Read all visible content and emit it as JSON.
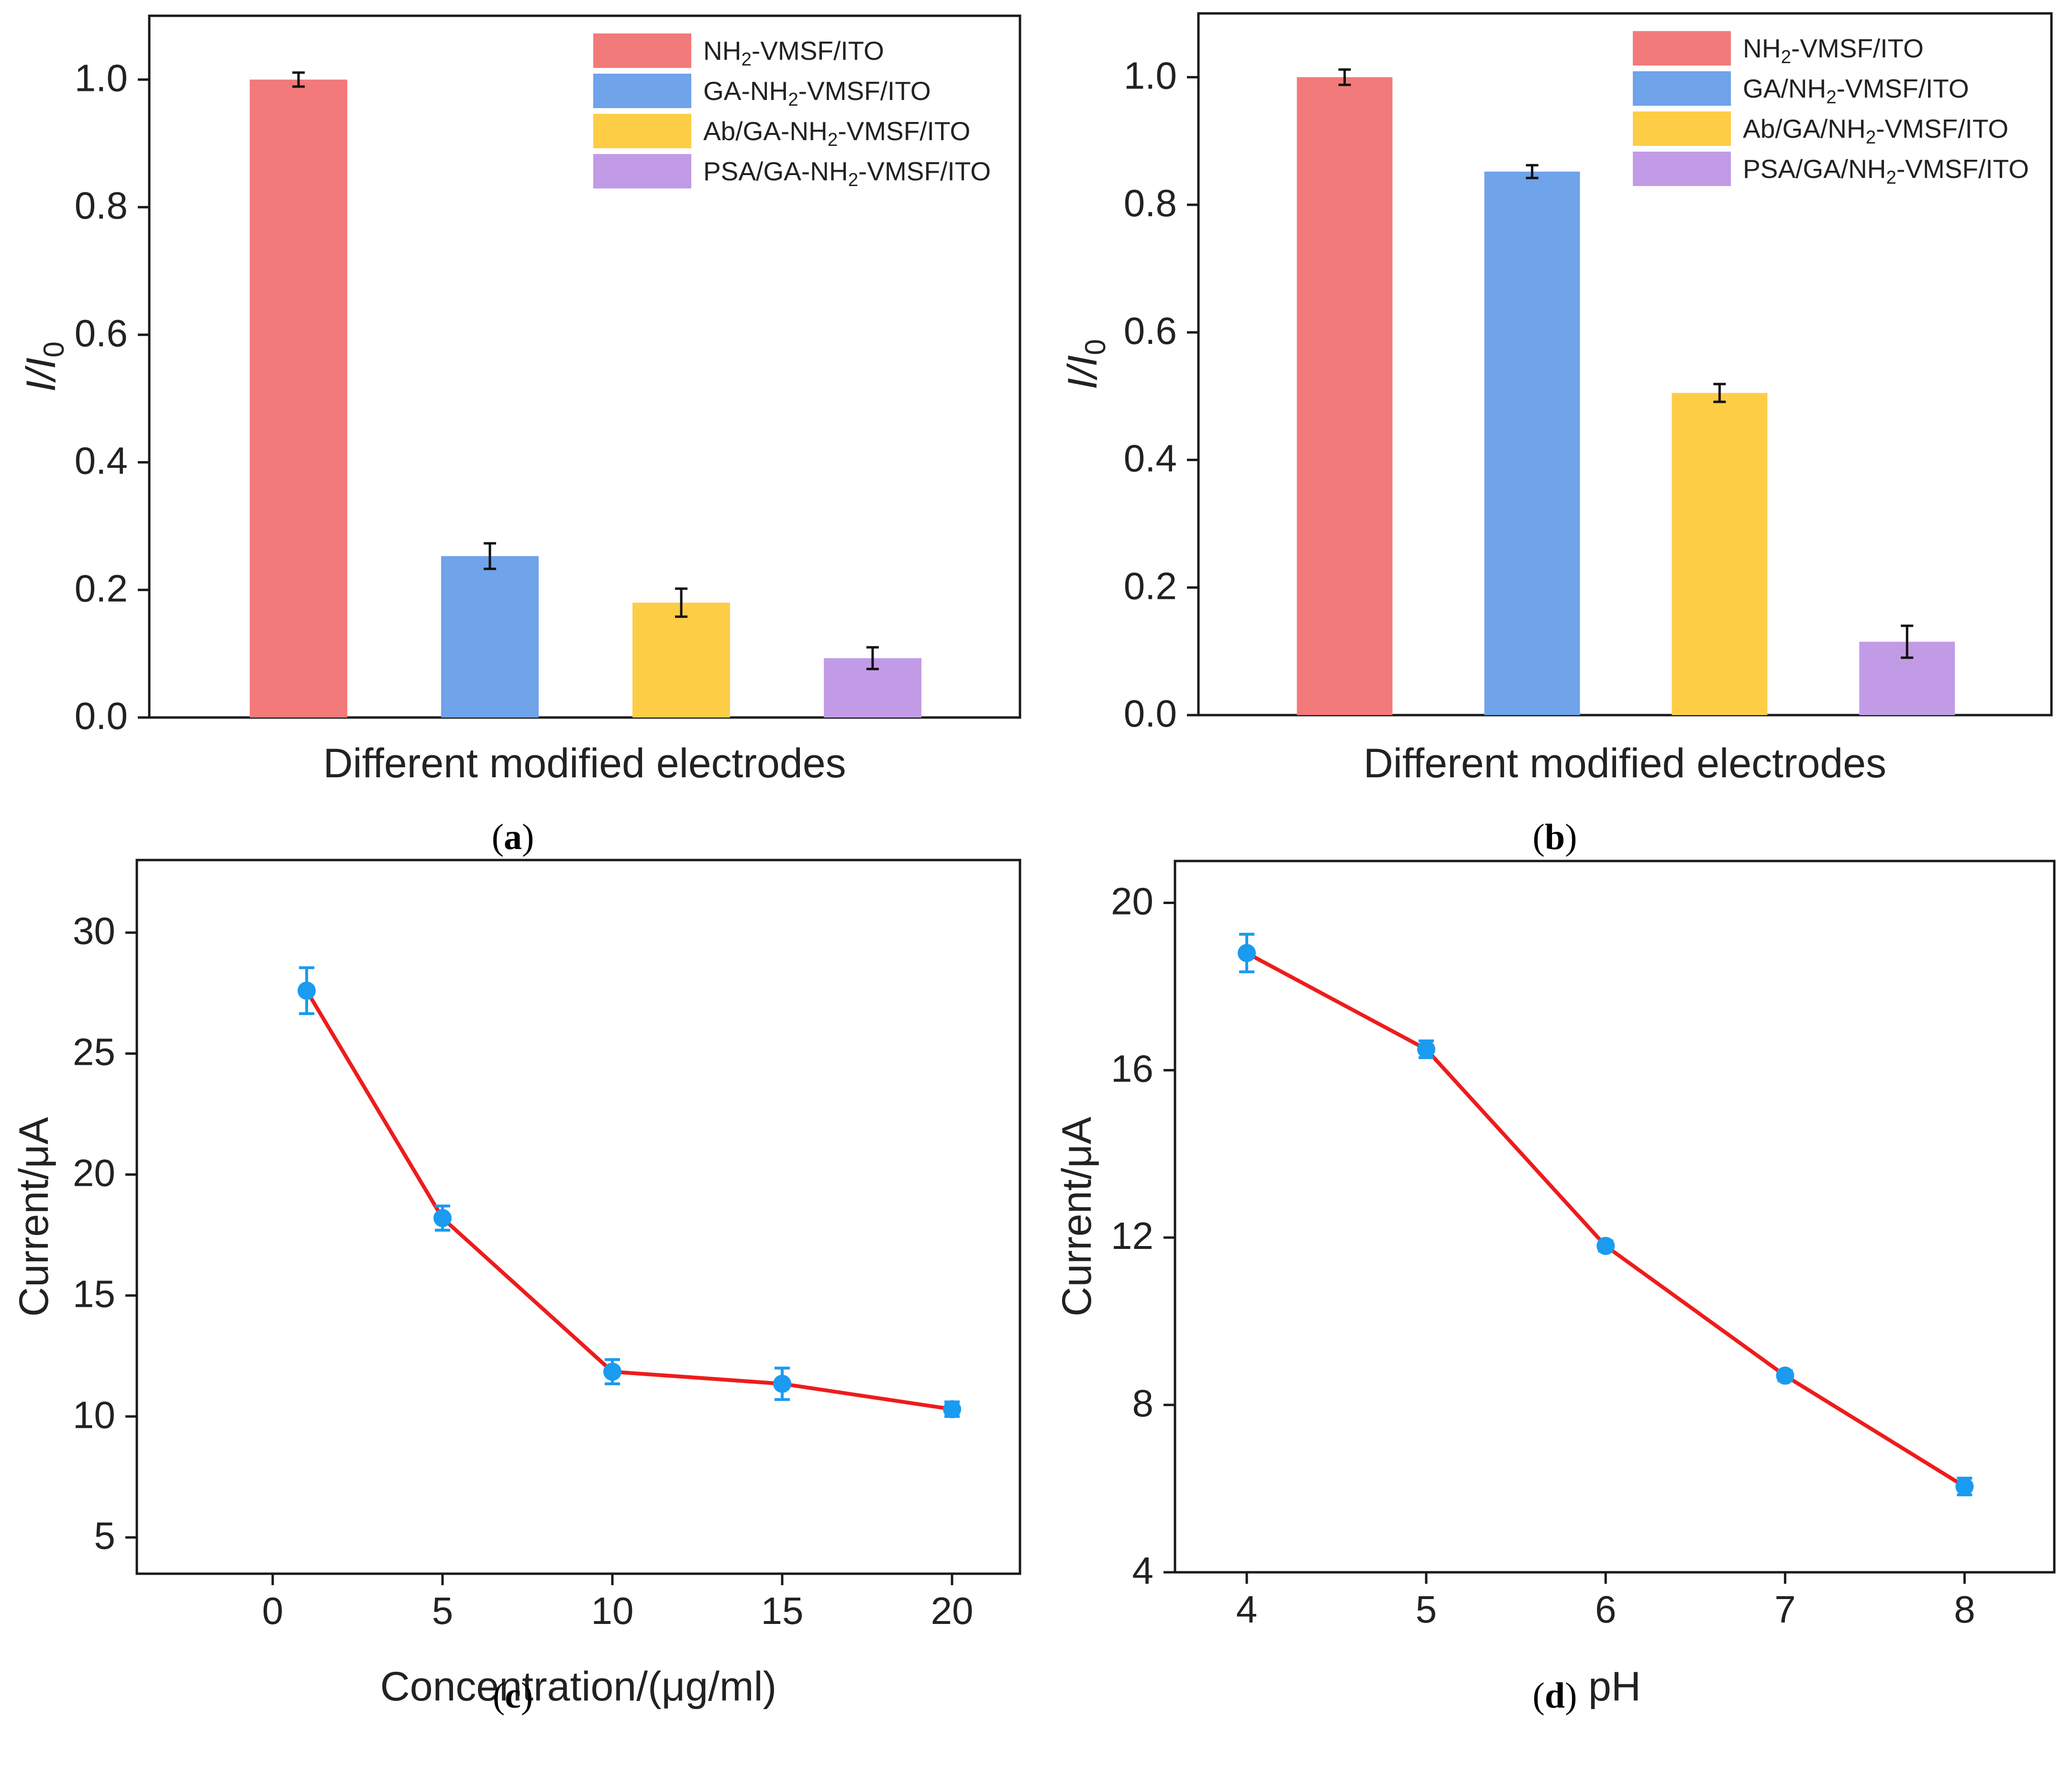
{
  "figure": {
    "panels": [
      "a",
      "b",
      "c",
      "d"
    ]
  },
  "chart_data": [
    {
      "panel": "a",
      "caption": "a",
      "type": "bar",
      "title": "",
      "xlabel": "Different modified electrodes",
      "ylabel_main": "I",
      "ylabel_sep": "/",
      "ylabel_den": "I",
      "ylabel_sub": "0",
      "ylim": [
        0,
        1.1
      ],
      "yticks": [
        "0.0",
        "0.2",
        "0.4",
        "0.6",
        "0.8",
        "1.0"
      ],
      "grid": false,
      "legend_position": "top-right",
      "categories": [
        "NH2-VMSF/ITO",
        "GA-NH2-VMSF/ITO",
        "Ab/GA-NH2-VMSF/ITO",
        "PSA/GA-NH2-VMSF/ITO"
      ],
      "values": [
        1.0,
        0.253,
        0.18,
        0.093
      ],
      "errors": [
        0.011,
        0.02,
        0.022,
        0.017
      ],
      "colors": [
        "#f27a7a",
        "#6fa3ea",
        "#fdcd46",
        "#c29be6"
      ],
      "legend": [
        {
          "pre": "NH",
          "sub": "2",
          "post": "-VMSF/ITO"
        },
        {
          "pre": "GA-NH",
          "sub": "2",
          "post": "-VMSF/ITO"
        },
        {
          "pre": "Ab/GA-NH",
          "sub": "2",
          "post": "-VMSF/ITO"
        },
        {
          "pre": "PSA/GA-NH",
          "sub": "2",
          "post": "-VMSF/ITO"
        }
      ]
    },
    {
      "panel": "b",
      "caption": "b",
      "type": "bar",
      "title": "",
      "xlabel": "Different modified electrodes",
      "ylabel_main": "I",
      "ylabel_sep": "/",
      "ylabel_den": "I",
      "ylabel_sub": "0",
      "ylim": [
        0,
        1.1
      ],
      "yticks": [
        "0.0",
        "0.2",
        "0.4",
        "0.6",
        "0.8",
        "1.0"
      ],
      "grid": false,
      "legend_position": "top-right",
      "categories": [
        "NH2-VMSF/ITO",
        "GA/NH2-VMSF/ITO",
        "Ab/GA/NH2-VMSF/ITO",
        "PSA/GA/NH2-VMSF/ITO"
      ],
      "values": [
        1.0,
        0.852,
        0.505,
        0.115
      ],
      "errors": [
        0.012,
        0.01,
        0.014,
        0.025
      ],
      "colors": [
        "#f27a7a",
        "#6fa3ea",
        "#fdcd46",
        "#c29be6"
      ],
      "legend": [
        {
          "pre": "NH",
          "sub": "2",
          "post": "-VMSF/ITO"
        },
        {
          "pre": "GA/NH",
          "sub": "2",
          "post": "-VMSF/ITO"
        },
        {
          "pre": "Ab/GA/NH",
          "sub": "2",
          "post": "-VMSF/ITO"
        },
        {
          "pre": "PSA/GA/NH",
          "sub": "2",
          "post": "-VMSF/ITO"
        }
      ]
    },
    {
      "panel": "c",
      "caption": "c",
      "type": "line",
      "title": "",
      "xlabel": "Concentration/(μg/ml)",
      "ylabel": "Current/μA",
      "xlim": [
        -4,
        22
      ],
      "ylim": [
        3.5,
        33
      ],
      "xticks": [
        0,
        5,
        10,
        15,
        20
      ],
      "yticks": [
        5,
        10,
        15,
        20,
        25,
        30
      ],
      "grid": false,
      "line_color": "#ee1c1c",
      "marker_color": "#1a9bf0",
      "x": [
        1,
        5,
        10,
        15,
        20
      ],
      "y": [
        27.6,
        18.2,
        11.85,
        11.35,
        10.3
      ],
      "errors": [
        0.95,
        0.5,
        0.5,
        0.65,
        0.3
      ]
    },
    {
      "panel": "d",
      "caption": "d",
      "type": "line",
      "title": "",
      "xlabel": "pH",
      "ylabel": "Current/μA",
      "xlim": [
        3.6,
        8.5
      ],
      "ylim": [
        4,
        21
      ],
      "xticks": [
        4,
        5,
        6,
        7,
        8
      ],
      "yticks": [
        4,
        8,
        12,
        16,
        20
      ],
      "grid": false,
      "line_color": "#ee1c1c",
      "marker_color": "#1a9bf0",
      "x": [
        4,
        5,
        6,
        7,
        8
      ],
      "y": [
        18.8,
        16.5,
        11.8,
        8.7,
        6.05
      ],
      "errors": [
        0.45,
        0.2,
        0.12,
        0.12,
        0.2
      ]
    }
  ]
}
